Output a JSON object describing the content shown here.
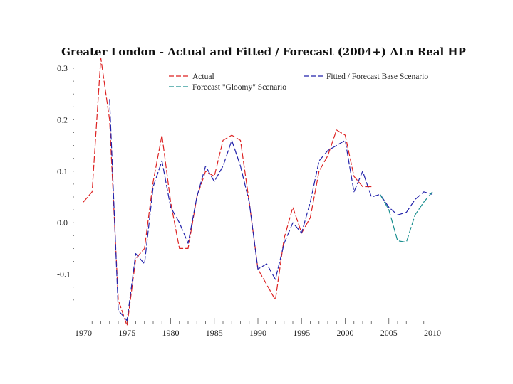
{
  "chart_data": {
    "type": "line",
    "title": "Greater London - Actual and Fitted / Forecast (2004+) ΔLn Real HP",
    "xlabel": "",
    "ylabel": "",
    "xlim": [
      1970,
      2010
    ],
    "ylim": [
      -0.2,
      0.3
    ],
    "x_ticks": [
      "1970",
      "1975",
      "1980",
      "1985",
      "1990",
      "1995",
      "2000",
      "2005",
      "2010"
    ],
    "y_ticks": [
      "0.3",
      "0.2",
      "0.1",
      "0.0",
      "-0.1"
    ],
    "legend": [
      "Actual",
      "Fitted / Forecast Base Scenario",
      "Forecast \"Gloomy\" Scenario"
    ],
    "series": [
      {
        "name": "Actual",
        "color": "#dd2222",
        "style": "dashed",
        "x": [
          1970,
          1971,
          1972,
          1973,
          1974,
          1975,
          1976,
          1977,
          1978,
          1979,
          1980,
          1981,
          1982,
          1983,
          1984,
          1985,
          1986,
          1987,
          1988,
          1989,
          1990,
          1991,
          1992,
          1993,
          1994,
          1995,
          1996,
          1997,
          1998,
          1999,
          2000,
          2001,
          2002,
          2003
        ],
        "values": [
          0.04,
          0.06,
          0.32,
          0.2,
          -0.15,
          -0.2,
          -0.07,
          -0.05,
          0.08,
          0.17,
          0.04,
          -0.05,
          -0.05,
          0.05,
          0.1,
          0.09,
          0.16,
          0.17,
          0.16,
          0.04,
          -0.09,
          -0.12,
          -0.15,
          -0.03,
          0.03,
          -0.02,
          0.01,
          0.1,
          0.13,
          0.18,
          0.17,
          0.09,
          0.07,
          0.07
        ]
      },
      {
        "name": "Fitted / Forecast Base Scenario",
        "color": "#2222aa",
        "style": "dashed",
        "x": [
          1973,
          1974,
          1975,
          1976,
          1977,
          1978,
          1979,
          1980,
          1981,
          1982,
          1983,
          1984,
          1985,
          1986,
          1987,
          1988,
          1989,
          1990,
          1991,
          1992,
          1993,
          1994,
          1995,
          1996,
          1997,
          1998,
          1999,
          2000,
          2001,
          2002,
          2003,
          2004,
          2005,
          2006,
          2007,
          2008,
          2009,
          2010
        ],
        "values": [
          0.24,
          -0.17,
          -0.19,
          -0.06,
          -0.08,
          0.07,
          0.12,
          0.03,
          0.0,
          -0.04,
          0.05,
          0.11,
          0.08,
          0.11,
          0.16,
          0.11,
          0.04,
          -0.09,
          -0.08,
          -0.11,
          -0.04,
          0.0,
          -0.02,
          0.04,
          0.12,
          0.14,
          0.15,
          0.16,
          0.06,
          0.1,
          0.05,
          0.055,
          0.03,
          0.015,
          0.02,
          0.045,
          0.06,
          0.055
        ]
      },
      {
        "name": "Forecast \"Gloomy\" Scenario",
        "color": "#1a8f8f",
        "style": "dashed",
        "x": [
          2004,
          2005,
          2006,
          2007,
          2008,
          2009,
          2010
        ],
        "values": [
          0.055,
          0.025,
          -0.035,
          -0.038,
          0.015,
          0.04,
          0.06
        ]
      }
    ]
  }
}
